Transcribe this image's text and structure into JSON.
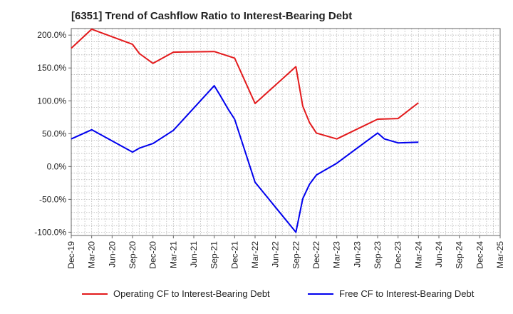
{
  "chart_data": {
    "type": "line",
    "title": "[6351]  Trend of Cashflow Ratio to Interest-Bearing Debt",
    "xlabel": "",
    "ylabel": "",
    "x_ticks": [
      "Dec-19",
      "Mar-20",
      "Jun-20",
      "Sep-20",
      "Dec-20",
      "Mar-21",
      "Jun-21",
      "Sep-21",
      "Dec-21",
      "Mar-22",
      "Jun-22",
      "Sep-22",
      "Dec-22",
      "Mar-23",
      "Jun-23",
      "Sep-23",
      "Dec-23",
      "Mar-24",
      "Jun-24",
      "Sep-24",
      "Dec-24",
      "Mar-25"
    ],
    "y_ticks": [
      "200.0%",
      "150.0%",
      "100.0%",
      "50.0%",
      "0.0%",
      "-50.0%",
      "-100.0%"
    ],
    "y_tick_values": [
      200,
      150,
      100,
      50,
      0,
      -50,
      -100
    ],
    "ylim": [
      -105,
      210
    ],
    "grid": true,
    "legend_position": "bottom",
    "series": [
      {
        "name": "Operating CF to Interest-Bearing Debt",
        "color": "#e31a1c",
        "x": [
          "2019-12",
          "2020-03",
          "2020-09",
          "2020-10",
          "2020-12",
          "2021-03",
          "2021-09",
          "2021-12",
          "2022-03",
          "2022-09",
          "2022-10",
          "2022-11",
          "2022-12",
          "2023-03",
          "2023-09",
          "2023-12",
          "2024-03"
        ],
        "values": [
          180,
          209,
          186,
          172,
          157,
          174,
          175,
          165,
          96,
          152,
          92,
          67,
          51,
          42,
          72,
          73,
          97
        ]
      },
      {
        "name": "Free CF to Interest-Bearing Debt",
        "color": "#0000ee",
        "x": [
          "2019-12",
          "2020-03",
          "2020-09",
          "2020-10",
          "2020-12",
          "2021-03",
          "2021-09",
          "2021-10",
          "2021-11",
          "2021-12",
          "2022-03",
          "2022-09",
          "2022-10",
          "2022-11",
          "2022-12",
          "2023-03",
          "2023-09",
          "2023-10",
          "2023-12",
          "2024-03"
        ],
        "values": [
          42,
          56,
          22,
          28,
          35,
          55,
          123,
          106,
          88,
          72,
          -24,
          -100,
          -49,
          -27,
          -13,
          5,
          51,
          42,
          36,
          37
        ]
      }
    ]
  }
}
